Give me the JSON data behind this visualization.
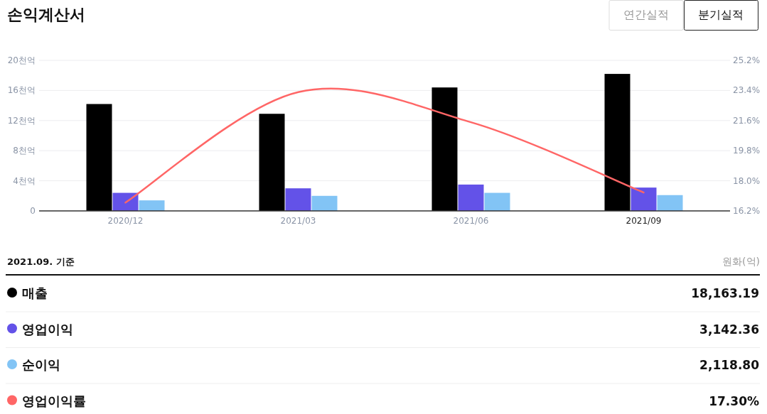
{
  "chart_data": {
    "type": "bar",
    "title": "손익계산서",
    "categories": [
      "2020/12",
      "2021/03",
      "2021/06",
      "2021/09"
    ],
    "series": [
      {
        "name": "매출",
        "color": "#000000",
        "values": [
          14.2,
          12.9,
          16.4,
          18.2
        ]
      },
      {
        "name": "영업이익",
        "color": "#6352e8",
        "values": [
          2.4,
          3.0,
          3.5,
          3.1
        ]
      },
      {
        "name": "순이익",
        "color": "#82c4f5",
        "values": [
          1.4,
          2.0,
          2.4,
          2.1
        ]
      },
      {
        "name": "영업이익률",
        "type": "line",
        "axis": "y2",
        "color": "#ff6666",
        "values": [
          16.7,
          23.3,
          21.5,
          17.3
        ]
      }
    ],
    "ylim": [
      0,
      20
    ],
    "yticks": [
      {
        "value": 0,
        "label": "0"
      },
      {
        "value": 4,
        "label": "4천억"
      },
      {
        "value": 8,
        "label": "8천억"
      },
      {
        "value": 12,
        "label": "12천억"
      },
      {
        "value": 16,
        "label": "16천억"
      },
      {
        "value": 20,
        "label": "20천억"
      }
    ],
    "y2lim": [
      16.2,
      25.2
    ],
    "y2ticks": [
      {
        "value": 16.2,
        "label": "16.2%"
      },
      {
        "value": 18.0,
        "label": "18.0%"
      },
      {
        "value": 19.8,
        "label": "19.8%"
      },
      {
        "value": 21.6,
        "label": "21.6%"
      },
      {
        "value": 23.4,
        "label": "23.4%"
      },
      {
        "value": 25.2,
        "label": "25.2%"
      }
    ],
    "grid": "y",
    "legend": "bottom",
    "marker": "none",
    "line_style": "solid",
    "annotations": [
      "연간실적",
      "분기실적",
      "2021.09. 기준",
      "원화(억)",
      "18,163.19",
      "3,142.36",
      "2,118.80",
      "17.30%"
    ]
  }
}
